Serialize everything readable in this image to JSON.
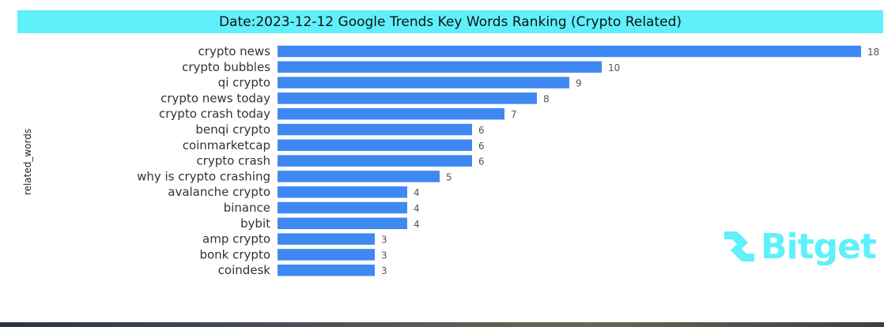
{
  "colors": {
    "title_bg": "#5ff0fb",
    "bar": "#3f88f2",
    "logo": "#5ff0fb"
  },
  "logo": {
    "icon": "bitget-logo-icon",
    "text": "Bitget"
  },
  "chart_data": {
    "type": "bar",
    "orientation": "horizontal",
    "title": "Date:2023-12-12 Google Trends Key Words Ranking (Crypto Related)",
    "xlabel": "",
    "ylabel": "related_words",
    "xlim": [
      0,
      18
    ],
    "grid": false,
    "data_labels": true,
    "categories": [
      "crypto news",
      "crypto bubbles",
      "qi crypto",
      "crypto news today",
      "crypto crash today",
      "benqi crypto",
      "coinmarketcap",
      "crypto crash",
      "why is crypto crashing",
      "avalanche crypto",
      "binance",
      "bybit",
      "amp crypto",
      "bonk crypto",
      "coindesk"
    ],
    "values": [
      18,
      10,
      9,
      8,
      7,
      6,
      6,
      6,
      5,
      4,
      4,
      4,
      3,
      3,
      3
    ]
  }
}
